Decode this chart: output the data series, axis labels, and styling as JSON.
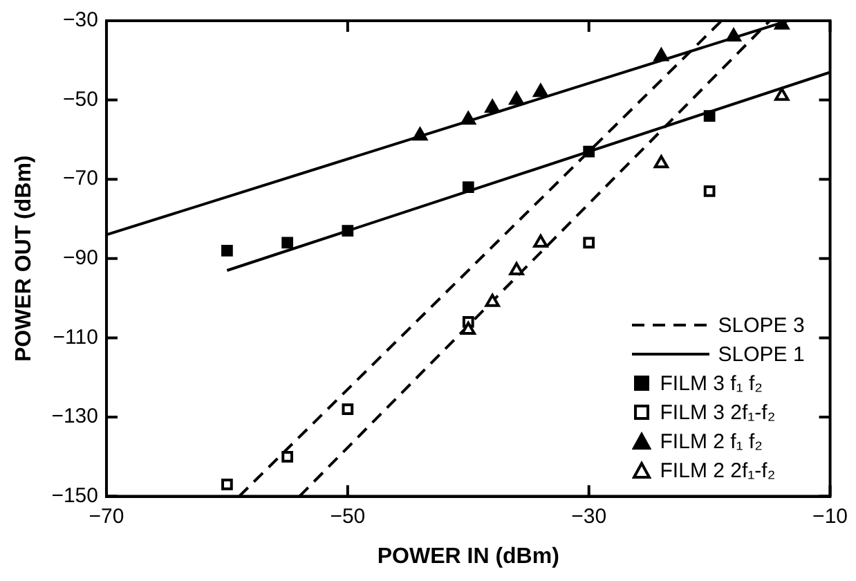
{
  "chart_data": {
    "type": "scatter",
    "xlabel": "POWER IN (dBm)",
    "ylabel": "POWER OUT (dBm)",
    "xlim": [
      -70,
      -10
    ],
    "ylim": [
      -150,
      -30
    ],
    "xticks": [
      -70,
      -50,
      -30,
      -10
    ],
    "yticks": [
      -150,
      -130,
      -110,
      -90,
      -70,
      -50,
      -30
    ],
    "grid": false,
    "legend": "bottom right",
    "series": [
      {
        "name": "SLOPE 3",
        "type": "line",
        "line_style": "dashed",
        "marker": "none",
        "color": "#000000",
        "x": [
          -59,
          -19
        ],
        "values": [
          -150,
          -30
        ]
      },
      {
        "type": "line",
        "line_style": "dashed",
        "marker": "none",
        "color": "#000000",
        "x": [
          -54,
          -15
        ],
        "values": [
          -150,
          -30
        ]
      },
      {
        "name": "SLOPE 1",
        "type": "line",
        "line_style": "solid",
        "marker": "none",
        "color": "#000000",
        "x": [
          -70,
          -13.5
        ],
        "values": [
          -84,
          -30
        ]
      },
      {
        "type": "line",
        "line_style": "solid",
        "marker": "none",
        "color": "#000000",
        "x": [
          -60,
          -10
        ],
        "values": [
          -93,
          -43
        ]
      },
      {
        "name": "FILM 3 f₁ f₂",
        "type": "scatter",
        "marker": "square",
        "color": "#000000",
        "x": [
          -60,
          -55,
          -50,
          -40,
          -30,
          -20
        ],
        "values": [
          -88,
          -86,
          -83,
          -72,
          -63,
          -54
        ]
      },
      {
        "name": "FILM 3 2f₁-f₂",
        "type": "scatter",
        "marker": "square",
        "color": "#ffffff",
        "x": [
          -60,
          -55,
          -50,
          -40,
          -30,
          -20
        ],
        "values": [
          -147,
          -140,
          -128,
          -106,
          -86,
          -73
        ]
      },
      {
        "name": "FILM 2 f₁ f₂",
        "type": "scatter",
        "marker": "triangle",
        "color": "#000000",
        "x": [
          -44,
          -40,
          -38,
          -36,
          -34,
          -24,
          -18,
          -14
        ],
        "values": [
          -59,
          -55,
          -52,
          -50,
          -48,
          -39,
          -34,
          -31
        ]
      },
      {
        "name": "FILM 2 2f₁-f₂",
        "type": "scatter",
        "marker": "triangle",
        "color": "#ffffff",
        "x": [
          -40,
          -38,
          -36,
          -34,
          -24,
          -14
        ],
        "values": [
          -108,
          -101,
          -93,
          -86,
          -66,
          -49
        ]
      }
    ]
  }
}
